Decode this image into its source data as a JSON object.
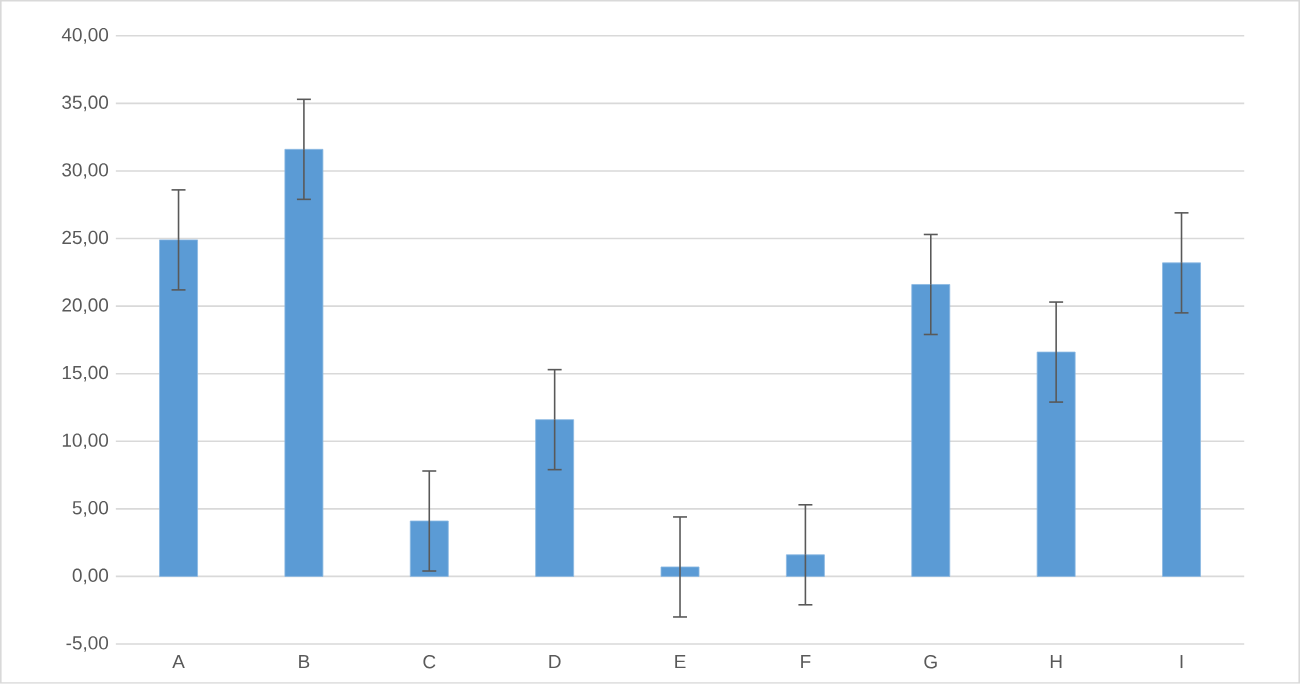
{
  "chart_data": {
    "type": "bar",
    "categories": [
      "A",
      "B",
      "C",
      "D",
      "E",
      "F",
      "G",
      "H",
      "I"
    ],
    "values": [
      24.9,
      31.6,
      4.1,
      11.6,
      0.7,
      1.6,
      21.6,
      16.6,
      23.2
    ],
    "errors": [
      3.7,
      3.7,
      3.7,
      3.7,
      3.7,
      3.7,
      3.7,
      3.7,
      3.7
    ],
    "color": "#5b9bd5",
    "ylim": [
      -5,
      40
    ],
    "yticks": [
      {
        "value": -5,
        "label": "-5,00"
      },
      {
        "value": 0,
        "label": "0,00"
      },
      {
        "value": 5,
        "label": "5,00"
      },
      {
        "value": 10,
        "label": "10,00"
      },
      {
        "value": 15,
        "label": "15,00"
      },
      {
        "value": 20,
        "label": "20,00"
      },
      {
        "value": 25,
        "label": "25,00"
      },
      {
        "value": 30,
        "label": "30,00"
      },
      {
        "value": 35,
        "label": "35,00"
      },
      {
        "value": 40,
        "label": "40,00"
      }
    ],
    "grid": "y"
  }
}
